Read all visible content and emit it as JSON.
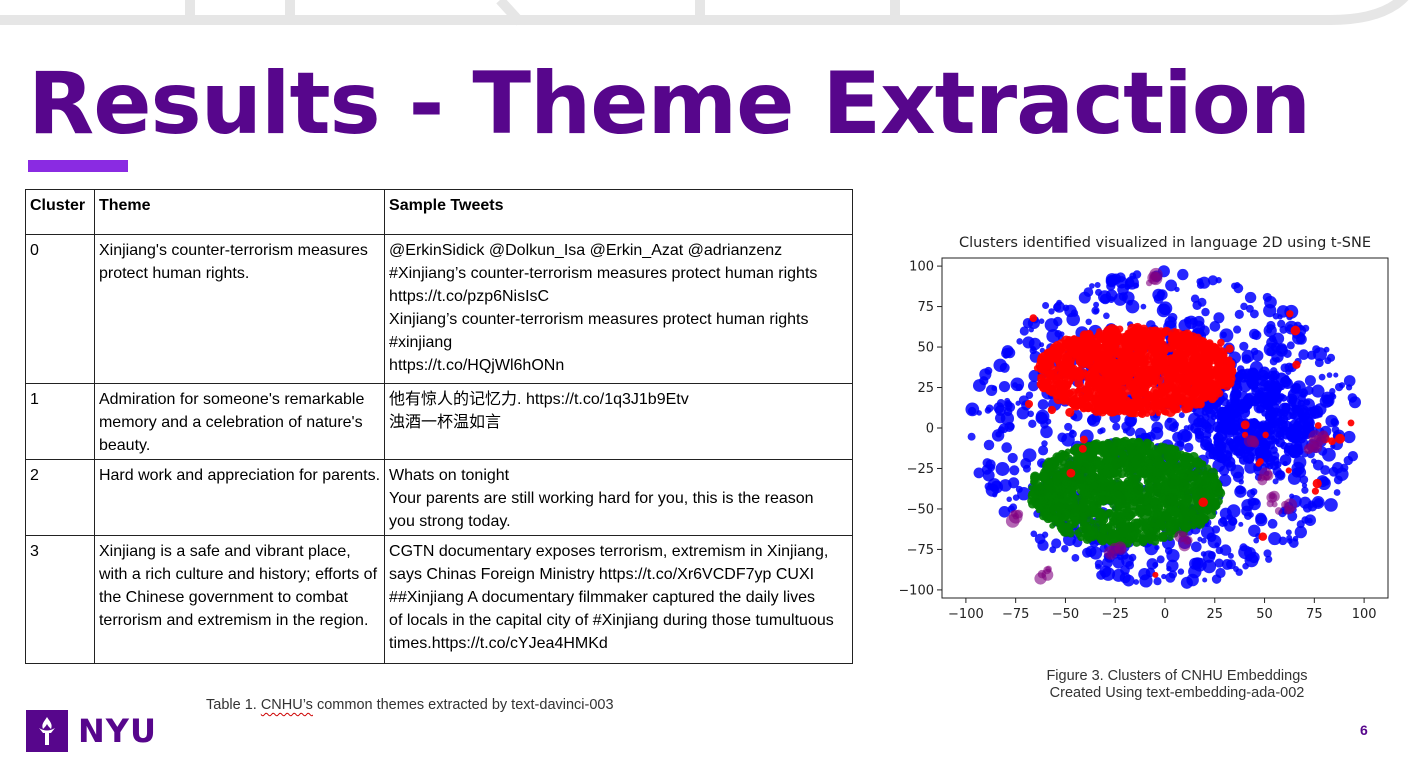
{
  "slide": {
    "title": "Results - Theme Extraction",
    "page_number": "6",
    "logo_text": "NYU",
    "accent_color": "#57068c"
  },
  "table": {
    "headers": [
      "Cluster",
      "Theme",
      "Sample Tweets"
    ],
    "rows": [
      {
        "cluster": "0",
        "theme": "Xinjiang's counter-terrorism measures protect human rights.",
        "tweets": [
          "@ErkinSidick @Dolkun_Isa @Erkin_Azat @adrianzenz",
          "#Xinjiang’s counter-terrorism measures protect human rights",
          "https://t.co/pzp6NisIsC",
          "Xinjiang’s counter-terrorism measures protect human rights",
          "#xinjiang",
          "https://t.co/HQjWl6hONn"
        ]
      },
      {
        "cluster": "1",
        "theme": "Admiration for someone's remarkable memory and a celebration of nature's beauty.",
        "tweets": [
          "他有惊人的记忆力. https://t.co/1q3J1b9Etv",
          "浊酒一杯温如言"
        ]
      },
      {
        "cluster": "2",
        "theme": "Hard work and appreciation for parents.",
        "tweets": [
          "Whats on tonight",
          "Your parents are still working hard for you, this is the reason",
          "you strong today."
        ]
      },
      {
        "cluster": "3",
        "theme": "Xinjiang is a safe and vibrant place, with a rich culture and history; efforts of the Chinese government to combat terrorism and extremism in the region.",
        "tweets": [
          "CGTN documentary exposes terrorism, extremism in Xinjiang,",
          "says Chinas Foreign Ministry  https://t.co/Xr6VCDF7yp CUXI",
          "##Xinjiang A documentary filmmaker captured the daily lives",
          "of locals in the capital city of #Xinjiang during those tumultuous",
          "times.https://t.co/cYJea4HMKd"
        ]
      }
    ],
    "caption_prefix": "Table 1. ",
    "caption_word": "CNHU’s",
    "caption_rest": " common themes extracted by text-davinci-003"
  },
  "figure": {
    "caption_line1": "Figure 3. Clusters of CNHU Embeddings",
    "caption_line2": "Created Using text-embedding-ada-002"
  },
  "chart_data": {
    "type": "scatter",
    "title": "Clusters identified visualized in language 2D using t-SNE",
    "xlabel": "",
    "ylabel": "",
    "xlim": [
      -112,
      112
    ],
    "ylim": [
      -105,
      105
    ],
    "xticks": [
      -100,
      -75,
      -50,
      -25,
      0,
      25,
      50,
      75,
      100
    ],
    "yticks": [
      100,
      75,
      50,
      25,
      0,
      -25,
      -50,
      -75,
      -100
    ],
    "grid": false,
    "legend": "none",
    "series": [
      {
        "color": "#ff0000",
        "region": {
          "center": [
            -15,
            35
          ],
          "radius": [
            50,
            27
          ]
        },
        "approx_points": 1400
      },
      {
        "color": "#008000",
        "region": {
          "center": [
            -20,
            -40
          ],
          "radius": [
            48,
            32
          ]
        },
        "approx_points": 1400
      },
      {
        "color": "#0000ff",
        "region": {
          "center": [
            0,
            0
          ],
          "radius": [
            100,
            100
          ]
        },
        "approx_points": 900
      },
      {
        "color": "#800080",
        "region": {
          "center": [
            0,
            0
          ],
          "radius": [
            100,
            100
          ]
        },
        "approx_points": 40
      }
    ]
  }
}
